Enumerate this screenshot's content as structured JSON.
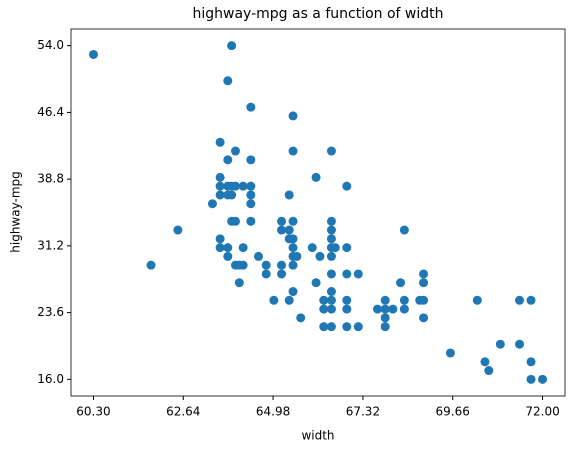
{
  "chart_data": {
    "type": "scatter",
    "title": "highway-mpg as a function of width",
    "x_label": "width",
    "y_label": "highway-mpg",
    "color": "#1f77b4",
    "xlim": [
      59.715,
      72.585
    ],
    "ylim": [
      14.1,
      55.9
    ],
    "xticks": [
      {
        "value": 60.3,
        "label": "60.30"
      },
      62.64,
      64.98,
      67.32,
      69.66,
      {
        "value": 72.0,
        "label": "72.00"
      }
    ],
    "yticks": [
      {
        "value": 16.0,
        "label": "16.0"
      },
      23.6,
      31.2,
      38.8,
      46.4,
      {
        "value": 54.0,
        "label": "54.0"
      }
    ],
    "x": [
      60.3,
      61.8,
      62.5,
      63.4,
      63.6,
      63.6,
      63.6,
      63.6,
      63.6,
      63.6,
      63.8,
      63.9,
      63.8,
      64.0,
      63.8,
      63.9,
      64.0,
      63.8,
      63.9,
      63.9,
      64.0,
      63.8,
      63.8,
      64.0,
      64.1,
      64.1,
      64.2,
      64.2,
      64.2,
      64.4,
      64.4,
      64.4,
      64.4,
      64.4,
      64.4,
      64.6,
      64.8,
      64.8,
      65.0,
      65.2,
      65.2,
      65.2,
      65.2,
      65.4,
      65.4,
      65.4,
      65.4,
      65.5,
      65.5,
      65.5,
      65.5,
      65.5,
      65.5,
      65.5,
      65.5,
      65.6,
      65.7,
      66.0,
      66.1,
      66.1,
      66.2,
      66.3,
      66.3,
      66.3,
      66.5,
      66.5,
      66.5,
      66.5,
      66.5,
      66.5,
      66.5,
      66.5,
      66.5,
      66.5,
      66.5,
      66.6,
      66.9,
      66.9,
      66.9,
      66.9,
      66.9,
      66.9,
      67.2,
      67.2,
      67.7,
      67.9,
      67.9,
      67.9,
      67.9,
      68.1,
      68.3,
      68.4,
      68.4,
      68.4,
      68.8,
      68.9,
      68.9,
      68.9,
      68.9,
      69.6,
      70.3,
      70.5,
      70.6,
      70.9,
      71.4,
      71.4,
      71.7,
      71.7,
      71.7,
      72.0
    ],
    "values": [
      53,
      29,
      33,
      36,
      43,
      39,
      38,
      37,
      32,
      31,
      50,
      54,
      41,
      42,
      38,
      38,
      38,
      37,
      37,
      34,
      34,
      31,
      30,
      29,
      29,
      27,
      38,
      31,
      29,
      47,
      41,
      38,
      37,
      36,
      34,
      30,
      29,
      28,
      25,
      34,
      33,
      29,
      28,
      32,
      33,
      37,
      25,
      46,
      42,
      34,
      32,
      31,
      30,
      29,
      26,
      30,
      23,
      31,
      39,
      27,
      30,
      25,
      24,
      22,
      42,
      34,
      33,
      32,
      31,
      30,
      28,
      26,
      25,
      24,
      22,
      31,
      38,
      31,
      28,
      25,
      24,
      22,
      28,
      22,
      24,
      25,
      24,
      23,
      22,
      24,
      27,
      33,
      25,
      24,
      25,
      28,
      27,
      25,
      23,
      19,
      25,
      18,
      17,
      20,
      20,
      25,
      25,
      18,
      16,
      16
    ]
  }
}
